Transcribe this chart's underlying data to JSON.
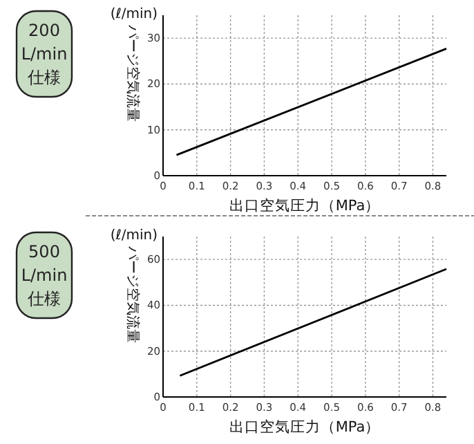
{
  "chart_data": [
    {
      "type": "line",
      "title": "200 L/min 仕様",
      "xlabel": "出口空気圧力（MPa）",
      "ylabel": "パージ空気流量",
      "annotations": [
        "(ℓ/min)"
      ],
      "series": [
        {
          "color": "#000000",
          "x": [
            0.04,
            0.84
          ],
          "values": [
            4.5,
            27.7
          ]
        }
      ],
      "xlim": [
        0,
        0.84
      ],
      "xticks": [
        0,
        0.1,
        0.2,
        0.3,
        0.4,
        0.5,
        0.6,
        0.7,
        0.8
      ],
      "ylim": [
        0,
        35
      ],
      "yticks": [
        0,
        10,
        20,
        30
      ],
      "grid": true,
      "marker": "none",
      "line_style": "solid"
    },
    {
      "type": "line",
      "title": "500 L/min 仕様",
      "xlabel": "出口空気圧力（MPa）",
      "ylabel": "パージ空気流量",
      "annotations": [
        "(ℓ/min)"
      ],
      "series": [
        {
          "color": "#000000",
          "x": [
            0.05,
            0.84
          ],
          "values": [
            9.3,
            55.8
          ]
        }
      ],
      "xlim": [
        0,
        0.84
      ],
      "xticks": [
        0,
        0.1,
        0.2,
        0.3,
        0.4,
        0.5,
        0.6,
        0.7,
        0.8
      ],
      "ylim": [
        0,
        70
      ],
      "yticks": [
        0,
        20,
        40,
        60
      ],
      "grid": true,
      "marker": "none",
      "line_style": "solid"
    }
  ]
}
